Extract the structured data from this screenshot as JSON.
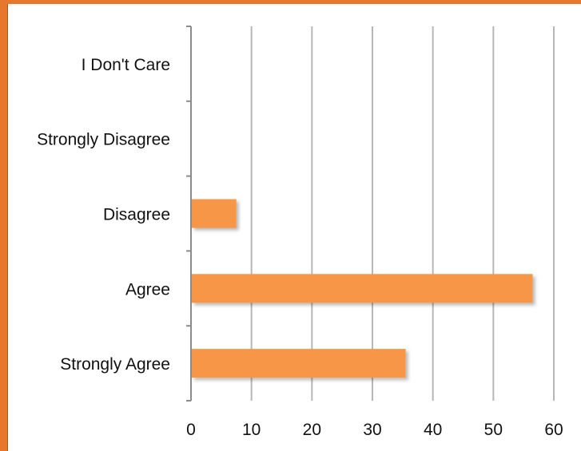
{
  "chart_data": {
    "type": "bar",
    "orientation": "horizontal",
    "categories": [
      "I Don't Care",
      "Strongly Disagree",
      "Disagree",
      "Agree",
      "Strongly Agree"
    ],
    "values": [
      0,
      0,
      7.5,
      56.5,
      35.5
    ],
    "xlim": [
      0,
      60
    ],
    "xticks": [
      "0",
      "10",
      "20",
      "30",
      "40",
      "50",
      "60"
    ],
    "grid": true,
    "legend": false,
    "colors": {
      "bar": "#f79646",
      "grid": "#b7b7b7",
      "axis": "#8c8c8c",
      "frame": "#e8772e"
    }
  }
}
